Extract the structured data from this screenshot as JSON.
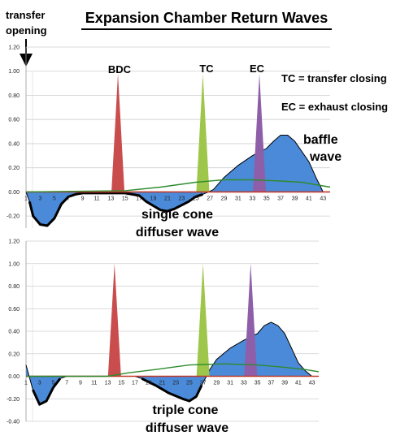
{
  "title": "Expansion Chamber Return Waves",
  "annotations": {
    "transfer_opening": [
      "transfer",
      "opening"
    ],
    "bdc": "BDC",
    "tc": "TC",
    "ec": "EC",
    "tc_legend": "TC = transfer closing",
    "ec_legend": "EC = exhaust closing",
    "baffle_wave": [
      "baffle",
      "wave"
    ],
    "single_cone": [
      "single cone",
      "diffuser wave"
    ],
    "triple_cone": [
      "triple cone",
      "diffuser wave"
    ]
  },
  "colors": {
    "wave": "#4a8ad8",
    "bdc": "#c94d4d",
    "tc": "#9ec64a",
    "ec": "#8e5fa8",
    "reference": "#c0392b",
    "trend": "#2e8b2e"
  },
  "chart_data": [
    {
      "type": "area",
      "name": "single-cone",
      "x_ticks": [
        "1",
        "3",
        "5",
        "7",
        "9",
        "11",
        "13",
        "15",
        "17",
        "19",
        "21",
        "23",
        "25",
        "27",
        "29",
        "31",
        "33",
        "35",
        "37",
        "39",
        "41",
        "43"
      ],
      "y_ticks": [
        "-0.20",
        "0.00",
        "0.20",
        "0.40",
        "0.60",
        "0.80",
        "1.00",
        "1.20"
      ],
      "ylim": [
        -0.3,
        1.2
      ],
      "xlim": [
        1,
        44
      ],
      "wave": [
        [
          1,
          0
        ],
        [
          1.5,
          -0.08
        ],
        [
          2,
          -0.2
        ],
        [
          3,
          -0.27
        ],
        [
          4,
          -0.28
        ],
        [
          5,
          -0.22
        ],
        [
          6,
          -0.1
        ],
        [
          7,
          -0.04
        ],
        [
          8,
          -0.02
        ],
        [
          9,
          -0.01
        ],
        [
          12,
          -0.01
        ],
        [
          15,
          -0.01
        ],
        [
          17,
          -0.03
        ],
        [
          18,
          -0.08
        ],
        [
          20,
          -0.15
        ],
        [
          21,
          -0.16
        ],
        [
          22,
          -0.14
        ],
        [
          24,
          -0.08
        ],
        [
          25,
          -0.04
        ],
        [
          26,
          -0.02
        ],
        [
          26.8,
          0
        ],
        [
          27.5,
          0.02
        ],
        [
          29,
          0.12
        ],
        [
          31,
          0.22
        ],
        [
          33,
          0.3
        ],
        [
          35,
          0.36
        ],
        [
          36,
          0.42
        ],
        [
          37,
          0.47
        ],
        [
          38,
          0.47
        ],
        [
          39,
          0.42
        ],
        [
          41,
          0.25
        ],
        [
          42,
          0.12
        ],
        [
          43,
          0
        ]
      ],
      "trend": [
        [
          1,
          0
        ],
        [
          15,
          0.01
        ],
        [
          20,
          0.04
        ],
        [
          25,
          0.08
        ],
        [
          29,
          0.1
        ],
        [
          33,
          0.1
        ],
        [
          37,
          0.09
        ],
        [
          40,
          0.08
        ],
        [
          42,
          0.06
        ],
        [
          44,
          0.04
        ]
      ],
      "spikes": [
        {
          "key": "bdc",
          "x": 14,
          "height": 0.98
        },
        {
          "key": "tc",
          "x": 26,
          "height": 0.98
        },
        {
          "key": "ec",
          "x": 34,
          "height": 0.98
        }
      ]
    },
    {
      "type": "area",
      "name": "triple-cone",
      "x_ticks": [
        "1",
        "3",
        "5",
        "7",
        "9",
        "11",
        "13",
        "15",
        "17",
        "19",
        "21",
        "23",
        "25",
        "27",
        "29",
        "31",
        "33",
        "35",
        "37",
        "39",
        "41",
        "43"
      ],
      "y_ticks": [
        "-0.40",
        "-0.20",
        "0.00",
        "0.20",
        "0.40",
        "0.60",
        "0.80",
        "1.00",
        "1.20"
      ],
      "ylim": [
        -0.4,
        1.2
      ],
      "xlim": [
        1,
        44
      ],
      "wave": [
        [
          1,
          0.1
        ],
        [
          2,
          -0.12
        ],
        [
          3,
          -0.25
        ],
        [
          4,
          -0.22
        ],
        [
          5,
          -0.1
        ],
        [
          6,
          -0.02
        ],
        [
          7,
          0
        ],
        [
          17,
          0
        ],
        [
          18,
          -0.02
        ],
        [
          20,
          -0.08
        ],
        [
          22,
          -0.15
        ],
        [
          24,
          -0.2
        ],
        [
          25,
          -0.22
        ],
        [
          26,
          -0.18
        ],
        [
          26.8,
          -0.08
        ],
        [
          27.5,
          0
        ],
        [
          28,
          0.06
        ],
        [
          29,
          0.15
        ],
        [
          31,
          0.25
        ],
        [
          33,
          0.32
        ],
        [
          35,
          0.38
        ],
        [
          36,
          0.45
        ],
        [
          37,
          0.48
        ],
        [
          38,
          0.45
        ],
        [
          39,
          0.38
        ],
        [
          40,
          0.25
        ],
        [
          41,
          0.12
        ],
        [
          42,
          0.05
        ],
        [
          43,
          0
        ]
      ],
      "trend": [
        [
          1,
          0
        ],
        [
          13,
          0
        ],
        [
          16,
          0.03
        ],
        [
          20,
          0.06
        ],
        [
          25,
          0.1
        ],
        [
          30,
          0.11
        ],
        [
          35,
          0.1
        ],
        [
          39,
          0.08
        ],
        [
          42,
          0.06
        ],
        [
          44,
          0.04
        ]
      ],
      "spikes": [
        {
          "key": "bdc",
          "x": 14,
          "height": 1.0
        },
        {
          "key": "tc",
          "x": 27,
          "height": 1.0
        },
        {
          "key": "ec",
          "x": 34,
          "height": 1.0
        }
      ]
    }
  ]
}
